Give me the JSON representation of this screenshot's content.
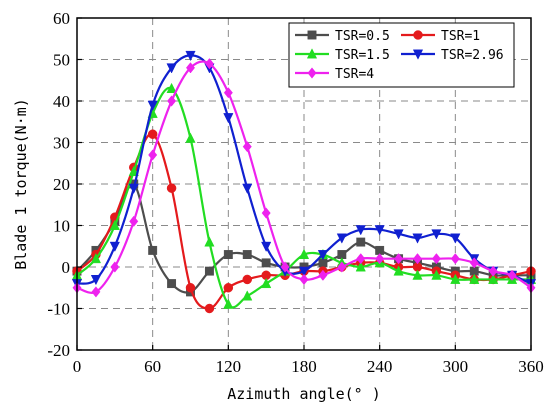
{
  "chart_data": {
    "type": "line",
    "title": "",
    "xlabel": "Azimuth angle(° )",
    "ylabel": "Blade 1 torque(N·m)",
    "xlim": [
      0,
      360
    ],
    "ylim": [
      -20,
      60
    ],
    "xticks": [
      0,
      60,
      120,
      180,
      240,
      300,
      360
    ],
    "yticks": [
      -20,
      -10,
      0,
      10,
      20,
      30,
      40,
      50,
      60
    ],
    "grid": true,
    "grid_style": "dashed",
    "legend_position": "top-right",
    "series": [
      {
        "name": "TSR=0.5",
        "color": "#4d4d4d",
        "marker": "square",
        "x": [
          0,
          15,
          30,
          45,
          60,
          75,
          90,
          105,
          120,
          135,
          150,
          165,
          180,
          195,
          210,
          225,
          240,
          255,
          270,
          285,
          300,
          315,
          330,
          345,
          360
        ],
        "y": [
          -1,
          4,
          11,
          20,
          4,
          -4,
          -6,
          -1,
          3,
          3,
          1,
          0,
          0,
          1,
          3,
          6,
          4,
          2,
          1,
          0,
          -1,
          -1,
          -2,
          -2,
          -2
        ]
      },
      {
        "name": "TSR=1",
        "color": "#e41a1c",
        "marker": "circle",
        "x": [
          0,
          15,
          30,
          45,
          60,
          75,
          90,
          105,
          120,
          135,
          150,
          165,
          180,
          195,
          210,
          225,
          240,
          255,
          270,
          285,
          300,
          315,
          330,
          345,
          360
        ],
        "y": [
          -1,
          3,
          12,
          24,
          32,
          19,
          -5,
          -10,
          -5,
          -3,
          -2,
          -2,
          -1,
          -1,
          0,
          1,
          1,
          0,
          0,
          -1,
          -2,
          -3,
          -3,
          -2,
          -1
        ]
      },
      {
        "name": "TSR=1.5",
        "color": "#22dd22",
        "marker": "triangle-up",
        "x": [
          0,
          15,
          30,
          45,
          60,
          75,
          90,
          105,
          120,
          135,
          150,
          165,
          180,
          195,
          210,
          225,
          240,
          255,
          270,
          285,
          300,
          315,
          330,
          345,
          360
        ],
        "y": [
          -2,
          2,
          10,
          23,
          37,
          43,
          31,
          6,
          -9,
          -7,
          -4,
          -1,
          3,
          3,
          1,
          0,
          1,
          -1,
          -2,
          -2,
          -3,
          -3,
          -3,
          -3,
          -3
        ]
      },
      {
        "name": "TSR=2.96",
        "color": "#1020d0",
        "marker": "triangle-down",
        "x": [
          0,
          15,
          30,
          45,
          60,
          75,
          90,
          105,
          120,
          135,
          150,
          165,
          180,
          195,
          210,
          225,
          240,
          255,
          270,
          285,
          300,
          315,
          330,
          345,
          360
        ],
        "y": [
          -4,
          -3,
          5,
          19,
          39,
          48,
          51,
          48,
          36,
          19,
          5,
          -1,
          -1,
          3,
          7,
          9,
          9,
          8,
          7,
          8,
          7,
          2,
          -1,
          -2,
          -4
        ]
      },
      {
        "name": "TSR=4",
        "color": "#ee22ee",
        "marker": "diamond",
        "x": [
          0,
          15,
          30,
          45,
          60,
          75,
          90,
          105,
          120,
          135,
          150,
          165,
          180,
          195,
          210,
          225,
          240,
          255,
          270,
          285,
          300,
          315,
          330,
          345,
          360
        ],
        "y": [
          -5,
          -6,
          0,
          11,
          27,
          40,
          48,
          49,
          42,
          29,
          13,
          0,
          -3,
          -2,
          0,
          2,
          2,
          2,
          2,
          2,
          2,
          1,
          -1,
          -2,
          -5
        ]
      }
    ]
  }
}
